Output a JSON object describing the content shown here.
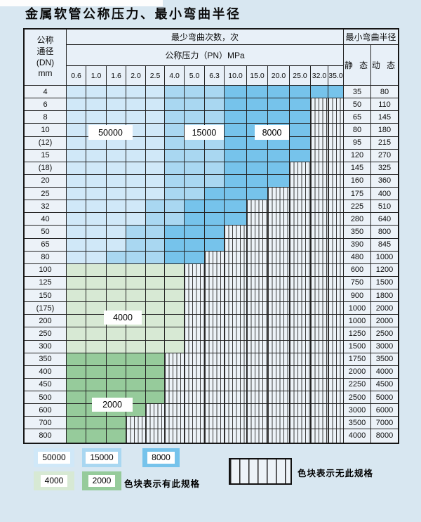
{
  "page_title": "金属软管公称压力、最小弯曲半径",
  "table": {
    "header": {
      "dn_lines": [
        "公称",
        "通径",
        "(DN)",
        "mm"
      ],
      "bend_times_label": "最少弯曲次数，次",
      "pressure_label": "公称压力（PN）MPa",
      "pressure_columns": [
        "0.6",
        "1.0",
        "1.6",
        "2.0",
        "2.5",
        "4.0",
        "5.0",
        "6.3",
        "10.0",
        "15.0",
        "20.0",
        "25.0",
        "32.0",
        "35.0"
      ],
      "radius_label": "最小弯曲半径",
      "static_label": "静 态",
      "dynamic_label": "动 态"
    },
    "rows": [
      {
        "dn": "4",
        "static": "35",
        "dynamic": "80",
        "zone": "blue",
        "light_end": 4,
        "medium_end": 7,
        "colored_end": 13
      },
      {
        "dn": "6",
        "static": "50",
        "dynamic": "110",
        "zone": "blue",
        "light_end": 4,
        "medium_end": 7,
        "colored_end": 11
      },
      {
        "dn": "8",
        "static": "65",
        "dynamic": "145",
        "zone": "blue",
        "light_end": 4,
        "medium_end": 7,
        "colored_end": 11
      },
      {
        "dn": "10",
        "static": "80",
        "dynamic": "180",
        "zone": "blue",
        "light_end": 4,
        "medium_end": 7,
        "colored_end": 11
      },
      {
        "dn": "(12)",
        "static": "95",
        "dynamic": "215",
        "zone": "blue",
        "light_end": 4,
        "medium_end": 7,
        "colored_end": 11
      },
      {
        "dn": "15",
        "static": "120",
        "dynamic": "270",
        "zone": "blue",
        "light_end": 4,
        "medium_end": 7,
        "colored_end": 11
      },
      {
        "dn": "(18)",
        "static": "145",
        "dynamic": "325",
        "zone": "blue",
        "light_end": 4,
        "medium_end": 7,
        "colored_end": 10
      },
      {
        "dn": "20",
        "static": "160",
        "dynamic": "360",
        "zone": "blue",
        "light_end": 4,
        "medium_end": 7,
        "colored_end": 10
      },
      {
        "dn": "25",
        "static": "175",
        "dynamic": "400",
        "zone": "blue",
        "light_end": 4,
        "medium_end": 6,
        "colored_end": 9
      },
      {
        "dn": "32",
        "static": "225",
        "dynamic": "510",
        "zone": "blue",
        "light_end": 3,
        "medium_end": 5,
        "colored_end": 8
      },
      {
        "dn": "40",
        "static": "280",
        "dynamic": "640",
        "zone": "blue",
        "light_end": 3,
        "medium_end": 5,
        "colored_end": 8
      },
      {
        "dn": "50",
        "static": "350",
        "dynamic": "800",
        "zone": "blue",
        "light_end": 2,
        "medium_end": 4,
        "colored_end": 7
      },
      {
        "dn": "65",
        "static": "390",
        "dynamic": "845",
        "zone": "blue",
        "light_end": 2,
        "medium_end": 4,
        "colored_end": 7
      },
      {
        "dn": "80",
        "static": "480",
        "dynamic": "1000",
        "zone": "blue",
        "light_end": 1,
        "medium_end": 4,
        "colored_end": 6
      },
      {
        "dn": "100",
        "static": "600",
        "dynamic": "1200",
        "zone": "green-light",
        "green_end": 5
      },
      {
        "dn": "125",
        "static": "750",
        "dynamic": "1500",
        "zone": "green-light",
        "green_end": 5
      },
      {
        "dn": "150",
        "static": "900",
        "dynamic": "1800",
        "zone": "green-light",
        "green_end": 5
      },
      {
        "dn": "(175)",
        "static": "1000",
        "dynamic": "2000",
        "zone": "green-light",
        "green_end": 5
      },
      {
        "dn": "200",
        "static": "1000",
        "dynamic": "2000",
        "zone": "green-light",
        "green_end": 5
      },
      {
        "dn": "250",
        "static": "1250",
        "dynamic": "2500",
        "zone": "green-light",
        "green_end": 5
      },
      {
        "dn": "300",
        "static": "1500",
        "dynamic": "3000",
        "zone": "green-light",
        "green_end": 5
      },
      {
        "dn": "350",
        "static": "1750",
        "dynamic": "3500",
        "zone": "green-dark",
        "green_end": 4
      },
      {
        "dn": "400",
        "static": "2000",
        "dynamic": "4000",
        "zone": "green-dark",
        "green_end": 4
      },
      {
        "dn": "450",
        "static": "2250",
        "dynamic": "4500",
        "zone": "green-dark",
        "green_end": 4
      },
      {
        "dn": "500",
        "static": "2500",
        "dynamic": "5000",
        "zone": "green-dark",
        "green_end": 4
      },
      {
        "dn": "600",
        "static": "3000",
        "dynamic": "6000",
        "zone": "green-dark",
        "green_end": 3
      },
      {
        "dn": "700",
        "static": "3500",
        "dynamic": "7000",
        "zone": "green-dark",
        "green_end": 2
      },
      {
        "dn": "800",
        "static": "4000",
        "dynamic": "8000",
        "zone": "green-dark",
        "green_end": 2
      }
    ]
  },
  "overlays": [
    {
      "text": "50000"
    },
    {
      "text": "15000"
    },
    {
      "text": "8000"
    },
    {
      "text": "4000"
    },
    {
      "text": "2000"
    }
  ],
  "legend": {
    "items": [
      {
        "value": "50000",
        "color_key": "blue_light"
      },
      {
        "value": "15000",
        "color_key": "blue_medium"
      },
      {
        "value": "8000",
        "color_key": "blue_dark"
      },
      {
        "value": "4000",
        "color_key": "green_light"
      },
      {
        "value": "2000",
        "color_key": "green_dark"
      }
    ],
    "has_spec_label": "色块表示有此规格",
    "no_spec_label": "色块表示无此规格"
  },
  "colors": {
    "blue_light": "#d0e8f8",
    "blue_medium": "#a9d7f1",
    "blue_dark": "#76c3eb",
    "green_light": "#d7e9d4",
    "green_dark": "#96cb9b",
    "hatch_bg": "#edf3f8",
    "cell_bg": "#ecf2f8",
    "header_bg": "#e8f0f8",
    "page_bg": "#d8e7f1"
  }
}
